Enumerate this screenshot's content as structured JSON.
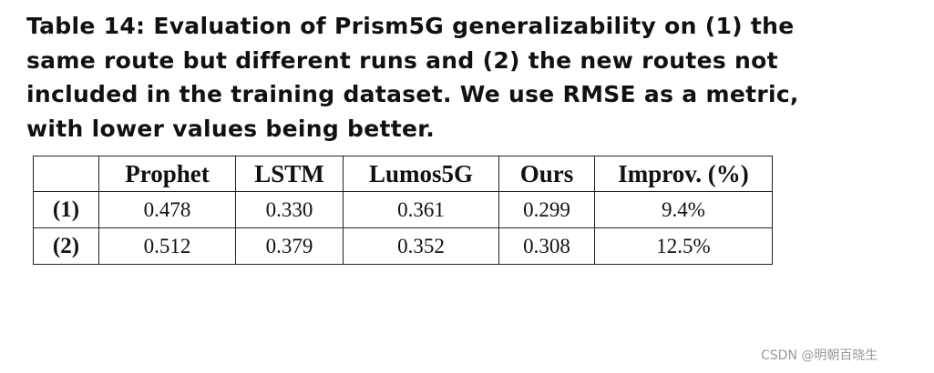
{
  "caption": {
    "lines": [
      "Table 14: Evaluation of Prism5G generalizability on (1) the",
      "same route but different runs and (2) the new routes not",
      "included in the training dataset. We use RMSE as a metric,",
      "with lower values being better."
    ]
  },
  "table": {
    "header": [
      "",
      "Prophet",
      "LSTM",
      "Lumos5G",
      "Ours",
      "Improv. (%)"
    ],
    "rows": [
      [
        "(1)",
        "0.478",
        "0.330",
        "0.361",
        "0.299",
        "9.4%"
      ],
      [
        "(2)",
        "0.512",
        "0.379",
        "0.352",
        "0.308",
        "12.5%"
      ]
    ]
  },
  "watermark": "CSDN @明朝百晓生"
}
